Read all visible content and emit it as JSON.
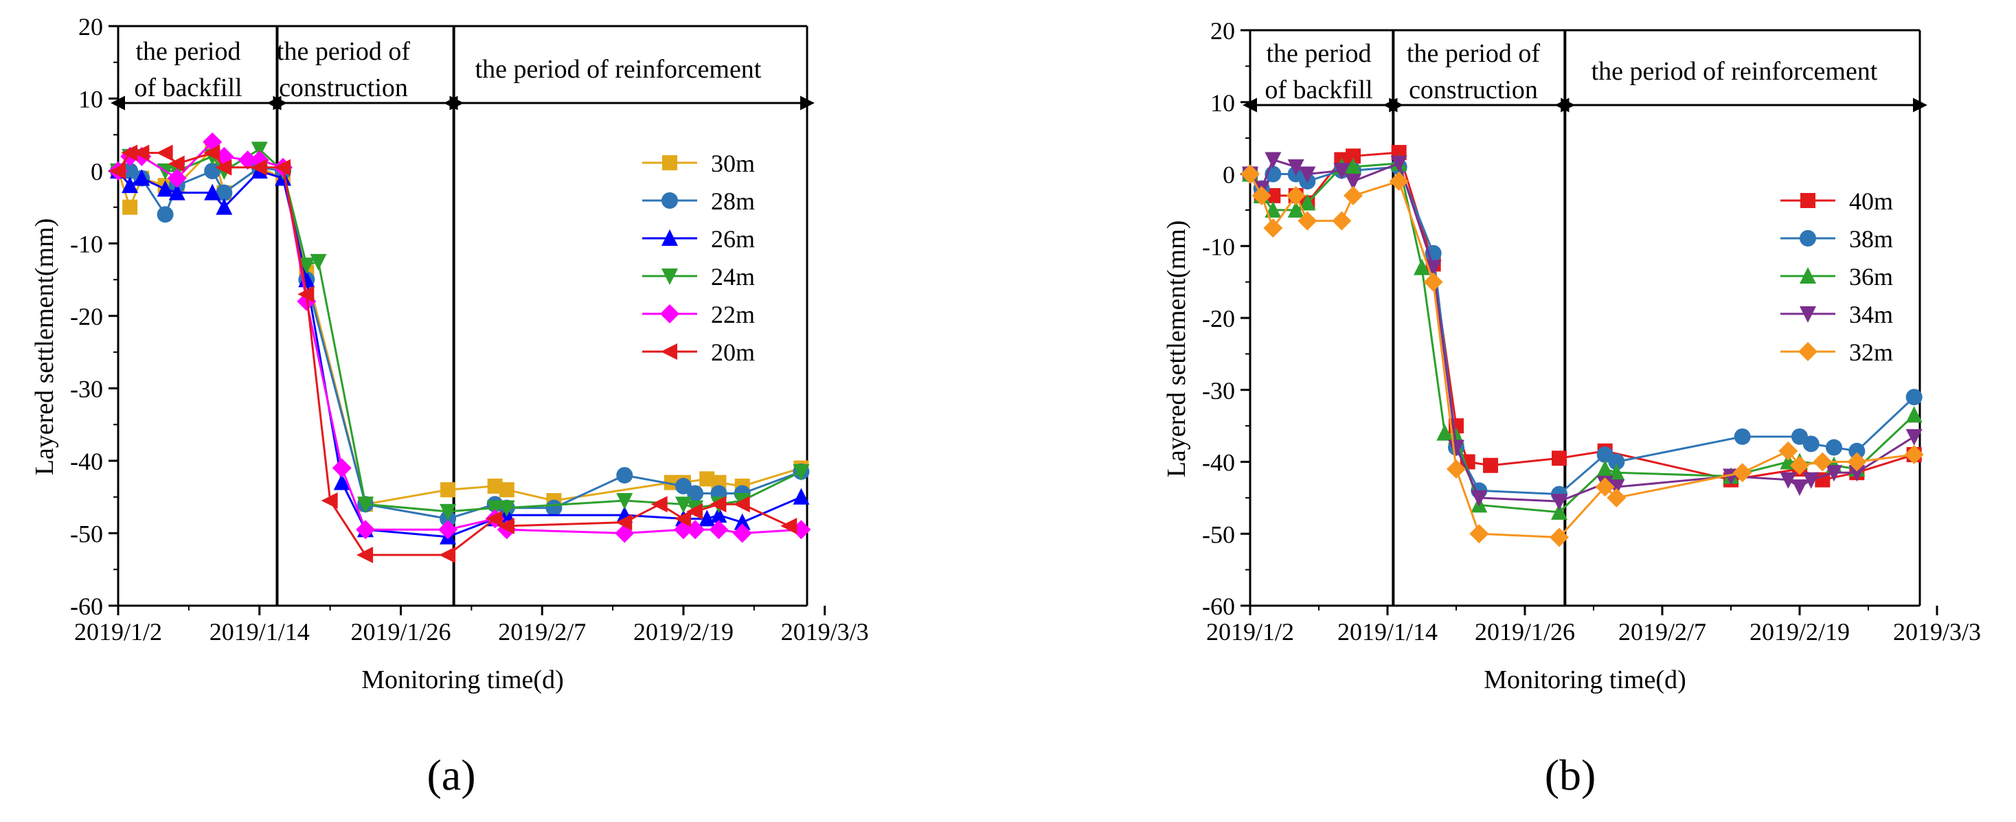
{
  "chart_data": [
    {
      "type": "line",
      "panel_label": "(a)",
      "ylabel": "Layered settlement(mm)",
      "xlabel": "Monitoring time(d)",
      "ylim": [
        -60,
        20
      ],
      "yticks": [
        "20",
        "10",
        "0",
        "-10",
        "-20",
        "-30",
        "-40",
        "-50",
        "-60"
      ],
      "xticks": [
        "2019/1/2",
        "2019/1/14",
        "2019/1/26",
        "2019/2/7",
        "2019/2/19",
        "2019/3/3"
      ],
      "periods": [
        {
          "lines": [
            "the period",
            "of backfill"
          ]
        },
        {
          "lines": [
            "the period of",
            "construction"
          ]
        },
        {
          "lines": [
            "the period of reinforcement"
          ]
        }
      ],
      "dividers": [
        13.5,
        28.5
      ],
      "series": [
        {
          "name": "30m",
          "color": "#E3A81A",
          "marker": "square",
          "x": [
            0,
            1,
            2,
            4,
            5,
            8,
            9,
            12,
            14,
            16,
            21,
            28,
            32,
            33,
            37,
            47,
            48,
            50,
            51,
            53,
            58
          ],
          "y": [
            0,
            -5,
            -1,
            -2,
            -2,
            3,
            -3,
            0.5,
            -1,
            -14,
            -46,
            -44,
            -43.5,
            -44,
            -45.5,
            -43,
            -43,
            -42.5,
            -43,
            -43.5,
            -41
          ]
        },
        {
          "name": "28m",
          "color": "#2E75B6",
          "marker": "circle",
          "x": [
            0,
            1,
            2,
            4,
            5,
            8,
            9,
            12,
            14,
            16,
            21,
            28,
            32,
            33,
            37,
            43,
            48,
            49,
            51,
            53,
            58
          ],
          "y": [
            0,
            0,
            -1,
            -6,
            -2,
            0,
            -3,
            0.5,
            0,
            -15,
            -46,
            -48,
            -46,
            -46.5,
            -46.5,
            -42,
            -43.5,
            -44.5,
            -44.5,
            -44.5,
            -41.5
          ]
        },
        {
          "name": "26m",
          "color": "#0000FF",
          "marker": "triangle-up",
          "x": [
            0,
            1,
            2,
            4,
            5,
            8,
            9,
            12,
            14,
            16,
            19,
            21,
            28,
            32,
            33,
            43,
            48,
            50,
            51,
            53,
            58
          ],
          "y": [
            0,
            -2,
            -1,
            -2.5,
            -3,
            -3,
            -5,
            0,
            -1,
            -15,
            -43,
            -49.5,
            -50.5,
            -48,
            -47.5,
            -47.5,
            -48,
            -48,
            -47.5,
            -48.5,
            -45
          ]
        },
        {
          "name": "24m",
          "color": "#2CA02C",
          "marker": "triangle-down",
          "x": [
            0,
            1,
            2,
            4,
            5,
            8,
            9,
            12,
            14,
            16,
            17,
            21,
            28,
            32,
            33,
            43,
            48,
            49,
            51,
            53,
            58
          ],
          "y": [
            0,
            2,
            2,
            0,
            0,
            2,
            0,
            3,
            0,
            -13,
            -12.5,
            -46,
            -47,
            -46.5,
            -46.5,
            -45.5,
            -46,
            -46.5,
            -46,
            -45.5,
            -41.5
          ]
        },
        {
          "name": "22m",
          "color": "#FF00FF",
          "marker": "diamond",
          "x": [
            0,
            1,
            2,
            5,
            8,
            9,
            11,
            12,
            14,
            16,
            19,
            21,
            28,
            32,
            33,
            43,
            48,
            49,
            51,
            53,
            58
          ],
          "y": [
            0,
            2,
            2,
            -1,
            4,
            2,
            1.5,
            1.5,
            0.5,
            -18,
            -41,
            -49.5,
            -49.5,
            -48,
            -49.5,
            -50,
            -49.5,
            -49.5,
            -49.5,
            -50,
            -49.5
          ]
        },
        {
          "name": "20m",
          "color": "#E31A1C",
          "marker": "triangle-left",
          "x": [
            0,
            1,
            2,
            4,
            5,
            8,
            9,
            12,
            14,
            16,
            18,
            21,
            28,
            32,
            33,
            43,
            46,
            48,
            49,
            51,
            53,
            57
          ],
          "y": [
            0,
            2.5,
            2.5,
            2.5,
            1,
            2.5,
            0.5,
            0.5,
            0.5,
            -17,
            -45.5,
            -53,
            -53,
            -48,
            -49,
            -48.5,
            -46,
            -48,
            -47,
            -46,
            -46,
            -49
          ]
        }
      ],
      "legend": {
        "position": "right"
      }
    },
    {
      "type": "line",
      "panel_label": "(b)",
      "ylabel": "Layered settlement(mm)",
      "xlabel": "Monitoring time(d)",
      "ylim": [
        -60,
        20
      ],
      "yticks": [
        "20",
        "10",
        "0",
        "-10",
        "-20",
        "-30",
        "-40",
        "-50",
        "-60"
      ],
      "xticks": [
        "2019/1/2",
        "2019/1/14",
        "2019/1/26",
        "2019/2/7",
        "2019/2/19",
        "2019/3/3"
      ],
      "periods": [
        {
          "lines": [
            "the period",
            "of backfill"
          ]
        },
        {
          "lines": [
            "the period of",
            "construction"
          ]
        },
        {
          "lines": [
            "the period of reinforcement"
          ]
        }
      ],
      "dividers": [
        12.5,
        27.5
      ],
      "series": [
        {
          "name": "40m",
          "color": "#E31A1C",
          "marker": "square",
          "x": [
            0,
            1,
            2,
            4,
            5,
            8,
            9,
            13,
            16,
            18,
            19,
            21,
            27,
            31,
            42,
            48,
            50,
            53,
            58
          ],
          "y": [
            0,
            -3,
            -3,
            -3,
            -4,
            2,
            2.5,
            3,
            -12.5,
            -35,
            -40,
            -40.5,
            -39.5,
            -38.5,
            -42.5,
            -41,
            -42.5,
            -41.5,
            -39
          ]
        },
        {
          "name": "38m",
          "color": "#2E75B6",
          "marker": "circle",
          "x": [
            0,
            1,
            2,
            4,
            5,
            8,
            9,
            13,
            16,
            18,
            20,
            27,
            31,
            32,
            43,
            48,
            49,
            51,
            53,
            58
          ],
          "y": [
            0,
            -2,
            0,
            0,
            -1,
            0.5,
            0.5,
            1,
            -11,
            -38,
            -44,
            -44.5,
            -39,
            -40,
            -36.5,
            -36.5,
            -37.5,
            -38,
            -38.5,
            -31
          ]
        },
        {
          "name": "36m",
          "color": "#2CA02C",
          "marker": "triangle-up",
          "x": [
            0,
            1,
            2,
            4,
            5,
            8,
            9,
            13,
            15,
            17,
            18,
            20,
            27,
            31,
            32,
            42,
            47,
            48,
            51,
            53,
            58
          ],
          "y": [
            0,
            -3,
            -5,
            -5,
            -4,
            1,
            1,
            1.5,
            -13,
            -36,
            -36.5,
            -46,
            -47,
            -41,
            -41.5,
            -42,
            -40,
            -40,
            -40.5,
            -41,
            -33.5
          ]
        },
        {
          "name": "34m",
          "color": "#7B2E8E",
          "marker": "triangle-down",
          "x": [
            0,
            1,
            2,
            4,
            5,
            8,
            9,
            13,
            16,
            18,
            20,
            27,
            31,
            32,
            42,
            47,
            48,
            49,
            51,
            53,
            58
          ],
          "y": [
            0,
            -2,
            2,
            1,
            0,
            0.5,
            -1,
            1.5,
            -13,
            -38,
            -45,
            -45.5,
            -43,
            -43.5,
            -42,
            -42.5,
            -43.5,
            -42.5,
            -41.5,
            -41.5,
            -36.5
          ]
        },
        {
          "name": "32m",
          "color": "#F7941D",
          "marker": "diamond",
          "x": [
            0,
            1,
            2,
            4,
            5,
            8,
            9,
            13,
            16,
            18,
            20,
            27,
            31,
            32,
            43,
            47,
            48,
            50,
            53,
            58
          ],
          "y": [
            0,
            -3,
            -7.5,
            -3,
            -6.5,
            -6.5,
            -3,
            -1,
            -15,
            -41,
            -50,
            -50.5,
            -43.5,
            -45,
            -41.5,
            -38.5,
            -40.5,
            -40,
            -40,
            -39
          ]
        }
      ],
      "legend": {
        "position": "right"
      }
    }
  ]
}
